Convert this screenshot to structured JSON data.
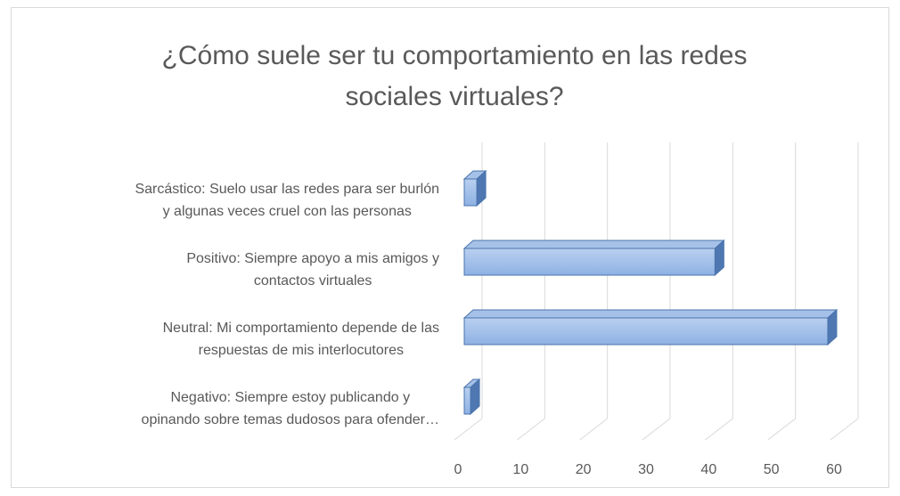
{
  "chart_data": {
    "type": "bar3d_horizontal",
    "title": "¿Cómo suele ser tu comportamiento en las redes sociales virtuales?",
    "categories": [
      "Sarcástico: Suelo usar las redes para ser burlón\ny algunas veces cruel con las personas",
      "Positivo: Siempre apoyo a mis amigos y\ncontactos virtuales",
      "Neutral: Mi comportamiento depende de las\nrespuestas de mis interlocutores",
      "Negativo: Siempre estoy publicando y\nopinando sobre temas dudosos para ofender…"
    ],
    "values": [
      2,
      40,
      58,
      1
    ],
    "color": "#8eb1e3",
    "xlim": [
      0,
      60
    ],
    "xticks": [
      0,
      10,
      20,
      30,
      40,
      50,
      60
    ],
    "grid": true
  }
}
